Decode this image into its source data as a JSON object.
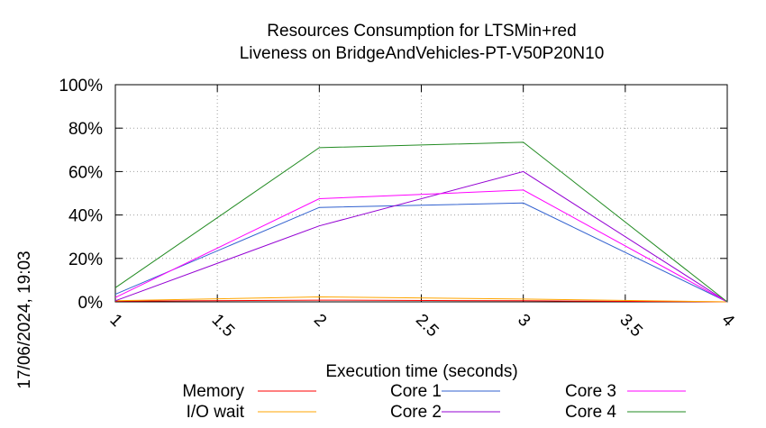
{
  "chart_data": {
    "type": "line",
    "title": "Resources Consumption for LTSMin+red",
    "subtitle": "Liveness on BridgeAndVehicles-PT-V50P20N10",
    "xlabel": "Execution time (seconds)",
    "ylabel": "",
    "xlim": [
      1,
      4
    ],
    "ylim": [
      0,
      100
    ],
    "x_ticks": [
      "1",
      "1.5",
      "2",
      "2.5",
      "3",
      "3.5",
      "4"
    ],
    "y_ticks": [
      "0%",
      "20%",
      "40%",
      "60%",
      "80%",
      "100%"
    ],
    "grid": true,
    "legend_position": "bottom",
    "side_label": "17/06/2024, 19:03",
    "series": [
      {
        "name": "Memory",
        "color": "#ff0000",
        "x": [
          1,
          2,
          3,
          4
        ],
        "y": [
          0.3,
          0.8,
          0.5,
          0
        ]
      },
      {
        "name": "I/O wait",
        "color": "#ffa500",
        "x": [
          1,
          2,
          3,
          4
        ],
        "y": [
          0.5,
          2.3,
          1.3,
          0
        ]
      },
      {
        "name": "Core 1",
        "color": "#3060cf",
        "x": [
          1,
          2,
          3,
          4
        ],
        "y": [
          3.5,
          43.5,
          45.5,
          0
        ]
      },
      {
        "name": "Core 2",
        "color": "#9400d3",
        "x": [
          1,
          2,
          3,
          4
        ],
        "y": [
          0.5,
          35,
          60,
          0
        ]
      },
      {
        "name": "Core 3",
        "color": "#ff00ff",
        "x": [
          1,
          2,
          3,
          4
        ],
        "y": [
          2,
          47.5,
          51.5,
          0
        ]
      },
      {
        "name": "Core 4",
        "color": "#228b22",
        "x": [
          1,
          2,
          3,
          4
        ],
        "y": [
          6.5,
          71,
          73.5,
          0
        ]
      }
    ]
  }
}
